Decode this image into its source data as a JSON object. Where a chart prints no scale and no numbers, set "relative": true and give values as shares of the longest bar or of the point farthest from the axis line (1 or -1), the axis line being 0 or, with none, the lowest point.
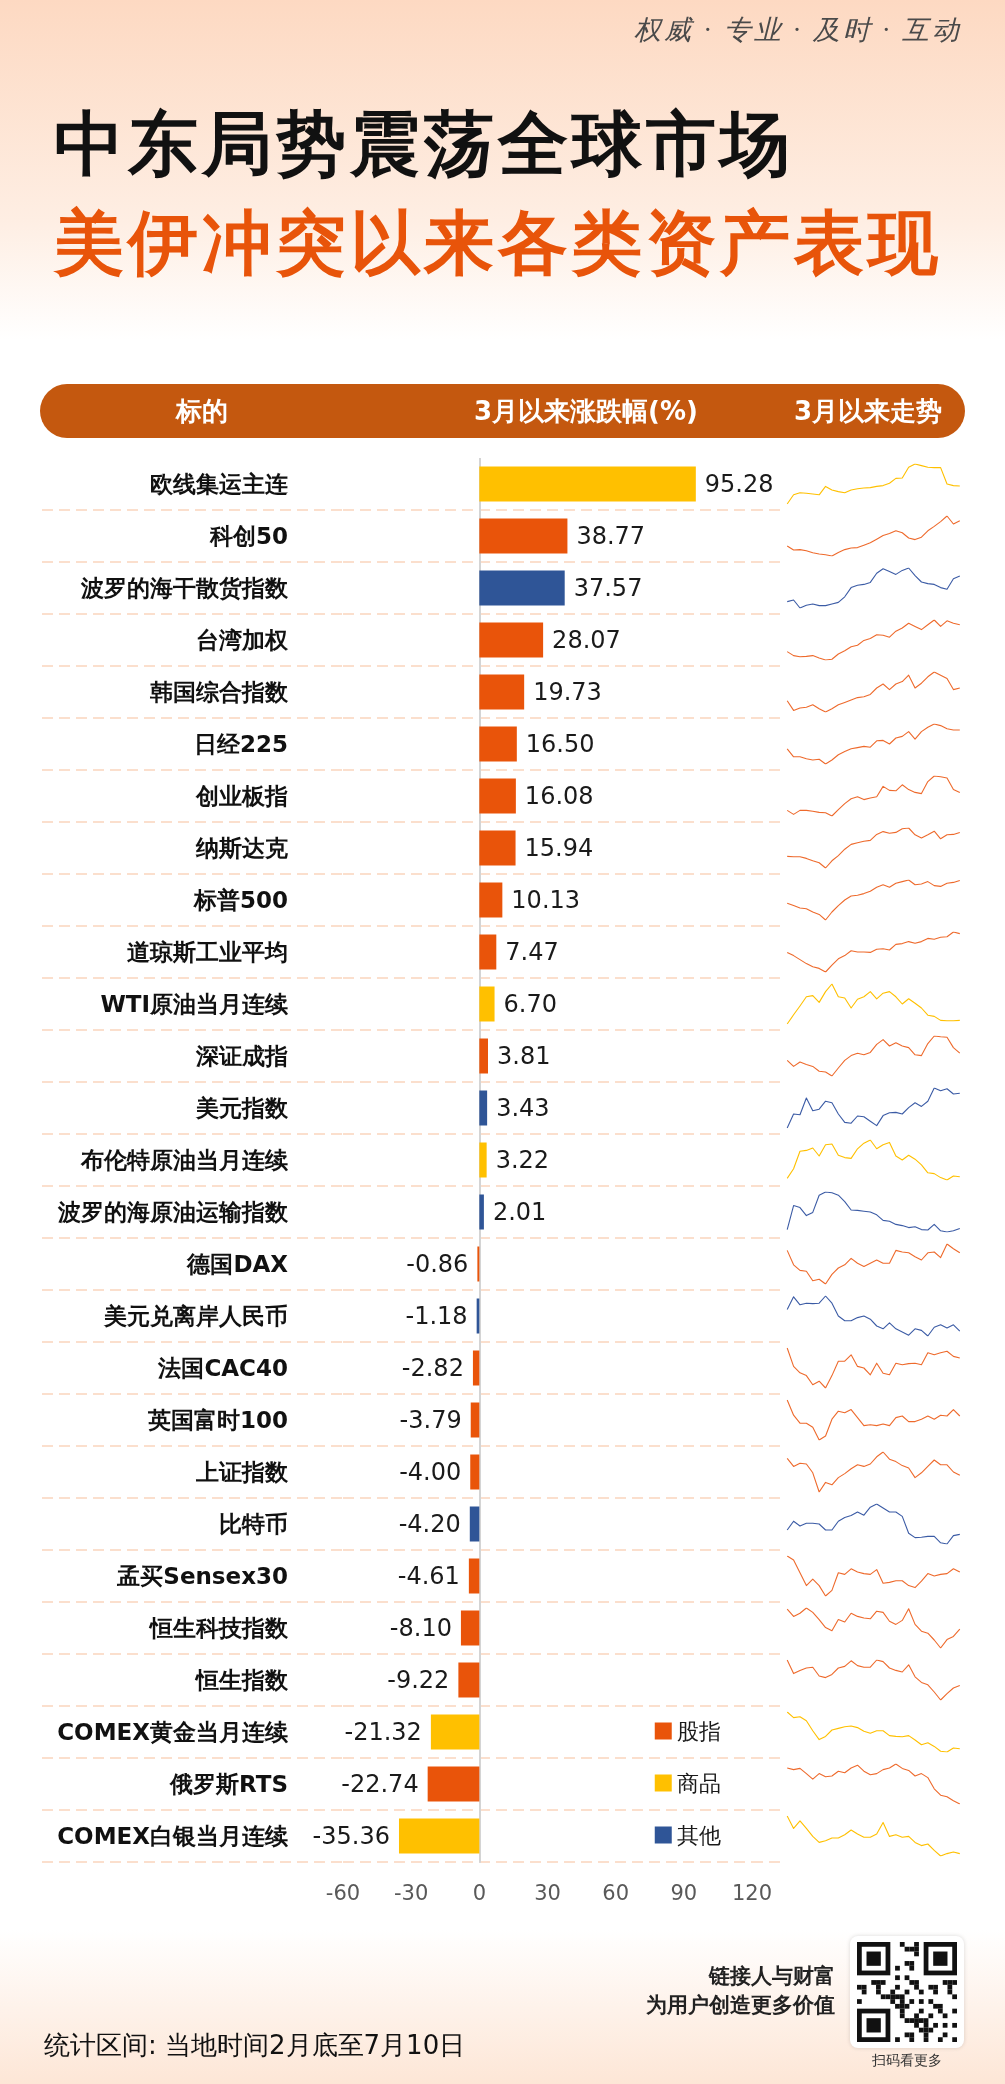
{
  "chart_data": [
    {
      "type": "bar",
      "orientation": "horizontal",
      "stacked": true,
      "title": "中东局势震荡全球市场",
      "subtitle": "美伊冲突以来各类资产表现",
      "ylabel": "标的",
      "xlabel": "3月以来涨跌幅(%)",
      "categories": [
        "欧线集运主连",
        "科创50",
        "波罗的海干散货指数",
        "台湾加权",
        "韩国综合指数",
        "日经225",
        "创业板指",
        "纳斯达克",
        "标普500",
        "道琼斯工业平均",
        "WTI原油当月连续",
        "深证成指",
        "美元指数",
        "布伦特原油当月连续",
        "波罗的海原油运输指数",
        "德国DAX",
        "美元兑离岸人民币",
        "法国CAC40",
        "英国富时100",
        "上证指数",
        "比特币",
        "孟买Sensex30",
        "恒生科技指数",
        "恒生指数",
        "COMEX黄金当月连续",
        "俄罗斯RTS",
        "COMEX白银当月连续"
      ],
      "series": [
        {
          "name": "股指",
          "color": "#e9540a",
          "values": [
            null,
            38.77,
            null,
            28.07,
            19.73,
            16.5,
            16.08,
            15.94,
            10.13,
            7.47,
            null,
            3.81,
            null,
            null,
            null,
            -0.86,
            null,
            -2.82,
            -3.79,
            -4.0,
            null,
            -4.61,
            -8.1,
            -9.22,
            null,
            -22.74,
            null
          ],
          "value_labels": [
            null,
            "38.77",
            null,
            "28.07",
            "19.73",
            "16.50",
            "16.08",
            "15.94",
            "10.13",
            "7.47",
            null,
            "3.81",
            null,
            null,
            null,
            "-0.86",
            null,
            "-2.82",
            "-3.79",
            "-4.00",
            null,
            "-4.61",
            "-8.10",
            "-9.22",
            null,
            "-22.74",
            null
          ]
        },
        {
          "name": "商品",
          "color": "#ffc000",
          "values": [
            95.28,
            null,
            null,
            null,
            null,
            null,
            null,
            null,
            null,
            null,
            6.7,
            null,
            null,
            3.22,
            null,
            null,
            null,
            null,
            null,
            null,
            null,
            null,
            null,
            null,
            -21.32,
            null,
            -35.36
          ],
          "value_labels": [
            "95.28",
            null,
            null,
            null,
            null,
            null,
            null,
            null,
            null,
            null,
            "6.70",
            null,
            null,
            "3.22",
            null,
            null,
            null,
            null,
            null,
            null,
            null,
            null,
            null,
            null,
            "-21.32",
            null,
            "-35.36"
          ]
        },
        {
          "name": "其他",
          "color": "#2f5597",
          "values": [
            null,
            null,
            37.57,
            null,
            null,
            null,
            null,
            null,
            null,
            null,
            null,
            null,
            3.43,
            null,
            2.01,
            null,
            -1.18,
            null,
            null,
            null,
            -4.2,
            null,
            null,
            null,
            null,
            null,
            null
          ],
          "value_labels": [
            null,
            null,
            "37.57",
            null,
            null,
            null,
            null,
            null,
            null,
            null,
            null,
            null,
            "3.43",
            null,
            "2.01",
            null,
            "-1.18",
            null,
            null,
            null,
            "-4.20",
            null,
            null,
            null,
            null,
            null,
            null
          ]
        }
      ],
      "xlim": [
        -60,
        120
      ],
      "xticks": [
        -60,
        -30,
        0,
        30,
        60,
        90,
        120
      ],
      "grid": "y",
      "legend": "bottom right",
      "annotations": [
        "权威 · 专业 · 及时 · 互动",
        "统计区间: 当地时间2月底至7月10日",
        "链接人与财富",
        "为用户创造更多价值",
        "扫码看更多"
      ]
    },
    {
      "type": "line",
      "relative": true,
      "tick_labels": false,
      "title": "3月以来走势",
      "categories": [
        null,
        null,
        null,
        null,
        null,
        null,
        null,
        null,
        null,
        null,
        null,
        null,
        null,
        null,
        null,
        null,
        null,
        null,
        null,
        null,
        null,
        null,
        null,
        null,
        null,
        null,
        null,
        null
      ],
      "series": [
        {
          "color": "#ffc000",
          "values": [
            0,
            0.23,
            0.28,
            0.27,
            0.25,
            0.23,
            0.44,
            0.35,
            0.31,
            0.28,
            0.35,
            0.38,
            0.4,
            0.41,
            0.44,
            0.46,
            0.52,
            0.64,
            0.65,
            0.92,
            1,
            0.96,
            0.92,
            0.91,
            0.91,
            0.5,
            0.46,
            0.45
          ]
        }
      ]
    },
    {
      "type": "line",
      "relative": true,
      "tick_labels": false,
      "categories": [
        null,
        null,
        null,
        null,
        null,
        null,
        null,
        null,
        null,
        null,
        null,
        null,
        null,
        null,
        null,
        null,
        null,
        null,
        null,
        null,
        null,
        null,
        null,
        null,
        null,
        null,
        null,
        null
      ],
      "series": [
        {
          "color": "#ee6a2c",
          "values": [
            0.25,
            0.15,
            0.16,
            0.13,
            0.08,
            0.05,
            0.03,
            0,
            0.09,
            0.16,
            0.2,
            0.21,
            0.27,
            0.33,
            0.42,
            0.51,
            0.56,
            0.63,
            0.58,
            0.45,
            0.41,
            0.47,
            0.63,
            0.74,
            0.86,
            1,
            0.8,
            0.88
          ]
        }
      ]
    },
    {
      "type": "line",
      "relative": true,
      "tick_labels": false,
      "categories": [
        null,
        null,
        null,
        null,
        null,
        null,
        null,
        null,
        null,
        null,
        null,
        null,
        null,
        null,
        null,
        null,
        null,
        null,
        null,
        null,
        null,
        null,
        null,
        null,
        null,
        null,
        null,
        null
      ],
      "series": [
        {
          "color": "#3b5ba5",
          "values": [
            0.16,
            0.2,
            0,
            0.07,
            0.1,
            0.06,
            0.06,
            0.1,
            0.14,
            0.28,
            0.51,
            0.57,
            0.59,
            0.64,
            0.87,
            0.98,
            0.91,
            0.84,
            0.94,
            1,
            0.81,
            0.65,
            0.61,
            0.59,
            0.51,
            0.47,
            0.73,
            0.8
          ]
        }
      ]
    },
    {
      "type": "line",
      "relative": true,
      "tick_labels": false,
      "categories": [
        null,
        null,
        null,
        null,
        null,
        null,
        null,
        null,
        null,
        null,
        null,
        null,
        null,
        null,
        null,
        null,
        null,
        null,
        null,
        null,
        null,
        null,
        null,
        null,
        null,
        null,
        null,
        null
      ],
      "series": [
        {
          "color": "#ee6a2c",
          "values": [
            0.21,
            0.11,
            0.08,
            0.09,
            0.11,
            0.05,
            0,
            0.02,
            0.15,
            0.23,
            0.33,
            0.37,
            0.49,
            0.54,
            0.63,
            0.62,
            0.57,
            0.72,
            0.8,
            0.92,
            0.84,
            0.76,
            0.88,
            1,
            0.84,
            0.98,
            0.92,
            0.88
          ]
        }
      ]
    },
    {
      "type": "line",
      "relative": true,
      "tick_labels": false,
      "categories": [
        null,
        null,
        null,
        null,
        null,
        null,
        null,
        null,
        null,
        null,
        null,
        null,
        null,
        null,
        null,
        null,
        null,
        null,
        null,
        null,
        null,
        null,
        null,
        null,
        null,
        null,
        null,
        null
      ],
      "series": [
        {
          "color": "#ee6a2c",
          "values": [
            0.28,
            0.04,
            0.1,
            0.12,
            0.18,
            0.08,
            0,
            0.08,
            0.18,
            0.24,
            0.3,
            0.36,
            0.38,
            0.44,
            0.6,
            0.7,
            0.56,
            0.7,
            0.76,
            0.92,
            0.6,
            0.72,
            0.88,
            1,
            0.92,
            0.84,
            0.56,
            0.6
          ]
        }
      ]
    },
    {
      "type": "line",
      "relative": true,
      "tick_labels": false,
      "categories": [
        null,
        null,
        null,
        null,
        null,
        null,
        null,
        null,
        null,
        null,
        null,
        null,
        null,
        null,
        null,
        null,
        null,
        null,
        null,
        null,
        null,
        null,
        null,
        null,
        null,
        null,
        null,
        null
      ],
      "series": [
        {
          "color": "#ee6a2c",
          "values": [
            0.38,
            0.18,
            0.18,
            0.13,
            0.1,
            0.12,
            0,
            0.1,
            0.23,
            0.31,
            0.38,
            0.41,
            0.44,
            0.42,
            0.58,
            0.59,
            0.5,
            0.65,
            0.69,
            0.81,
            0.62,
            0.81,
            0.92,
            1,
            0.96,
            0.88,
            0.85,
            0.85
          ]
        }
      ]
    },
    {
      "type": "line",
      "relative": true,
      "tick_labels": false,
      "categories": [
        null,
        null,
        null,
        null,
        null,
        null,
        null,
        null,
        null,
        null,
        null,
        null,
        null,
        null,
        null,
        null,
        null,
        null,
        null,
        null,
        null,
        null,
        null,
        null,
        null,
        null,
        null,
        null
      ],
      "series": [
        {
          "color": "#ee6a2c",
          "values": [
            0.14,
            0.04,
            0.14,
            0.14,
            0.12,
            0.09,
            0.08,
            0,
            0.16,
            0.31,
            0.43,
            0.48,
            0.41,
            0.45,
            0.48,
            0.74,
            0.64,
            0.63,
            0.78,
            0.66,
            0.59,
            0.56,
            0.86,
            1,
            0.98,
            0.95,
            0.66,
            0.59
          ]
        }
      ]
    },
    {
      "type": "line",
      "relative": true,
      "tick_labels": false,
      "categories": [
        null,
        null,
        null,
        null,
        null,
        null,
        null,
        null,
        null,
        null,
        null,
        null,
        null,
        null,
        null,
        null,
        null,
        null,
        null,
        null,
        null,
        null,
        null,
        null,
        null,
        null,
        null,
        null
      ],
      "series": [
        {
          "color": "#ee6a2c",
          "values": [
            0.29,
            0.28,
            0.28,
            0.24,
            0.18,
            0.13,
            0,
            0.18,
            0.31,
            0.47,
            0.59,
            0.63,
            0.67,
            0.69,
            0.84,
            0.91,
            0.87,
            0.89,
            0.98,
            1,
            0.83,
            0.75,
            0.83,
            0.92,
            0.73,
            0.83,
            0.84,
            0.89
          ]
        }
      ]
    },
    {
      "type": "line",
      "relative": true,
      "tick_labels": false,
      "categories": [
        null,
        null,
        null,
        null,
        null,
        null,
        null,
        null,
        null,
        null,
        null,
        null,
        null,
        null,
        null,
        null,
        null,
        null,
        null,
        null,
        null,
        null,
        null,
        null,
        null,
        null,
        null,
        null
      ],
      "series": [
        {
          "color": "#ee6a2c",
          "values": [
            0.42,
            0.36,
            0.3,
            0.28,
            0.2,
            0.14,
            0,
            0.2,
            0.36,
            0.5,
            0.6,
            0.62,
            0.66,
            0.72,
            0.82,
            0.88,
            0.82,
            0.92,
            0.96,
            1,
            0.88,
            0.9,
            0.96,
            0.86,
            0.84,
            0.92,
            0.94,
            0.99
          ]
        }
      ]
    },
    {
      "type": "line",
      "relative": true,
      "tick_labels": false,
      "categories": [
        null,
        null,
        null,
        null,
        null,
        null,
        null,
        null,
        null,
        null,
        null,
        null,
        null,
        null,
        null,
        null,
        null,
        null,
        null,
        null,
        null,
        null,
        null,
        null,
        null,
        null,
        null,
        null
      ],
      "series": [
        {
          "color": "#ee6a2c",
          "values": [
            0.49,
            0.41,
            0.31,
            0.21,
            0.13,
            0.09,
            0,
            0.17,
            0.33,
            0.41,
            0.53,
            0.5,
            0.5,
            0.49,
            0.57,
            0.58,
            0.55,
            0.69,
            0.71,
            0.76,
            0.72,
            0.76,
            0.84,
            0.82,
            0.87,
            0.88,
            1,
            0.96
          ]
        }
      ]
    },
    {
      "type": "line",
      "relative": true,
      "tick_labels": false,
      "categories": [
        null,
        null,
        null,
        null,
        null,
        null,
        null,
        null,
        null,
        null,
        null,
        null,
        null,
        null,
        null,
        null,
        null,
        null,
        null,
        null,
        null,
        null,
        null,
        null,
        null,
        null,
        null,
        null
      ],
      "series": [
        {
          "color": "#ffc000",
          "values": [
            0,
            0.23,
            0.45,
            0.68,
            0.71,
            0.54,
            0.81,
            1,
            0.68,
            0.65,
            0.4,
            0.62,
            0.68,
            0.81,
            0.63,
            0.77,
            0.81,
            0.68,
            0.5,
            0.63,
            0.52,
            0.4,
            0.22,
            0.19,
            0.09,
            0.08,
            0.08,
            0.09
          ]
        }
      ]
    },
    {
      "type": "line",
      "relative": true,
      "tick_labels": false,
      "categories": [
        null,
        null,
        null,
        null,
        null,
        null,
        null,
        null,
        null,
        null,
        null,
        null,
        null,
        null,
        null,
        null,
        null,
        null,
        null,
        null,
        null,
        null,
        null,
        null,
        null,
        null,
        null,
        null
      ],
      "series": [
        {
          "color": "#ee6a2c",
          "values": [
            0.39,
            0.24,
            0.35,
            0.29,
            0.24,
            0.12,
            0.1,
            0,
            0.2,
            0.39,
            0.51,
            0.57,
            0.53,
            0.59,
            0.79,
            0.91,
            0.75,
            0.83,
            0.75,
            0.71,
            0.53,
            0.51,
            0.81,
            1,
            0.98,
            0.97,
            0.71,
            0.57
          ]
        }
      ]
    },
    {
      "type": "line",
      "relative": true,
      "tick_labels": false,
      "categories": [
        null,
        null,
        null,
        null,
        null,
        null,
        null,
        null,
        null,
        null,
        null,
        null,
        null,
        null,
        null,
        null,
        null,
        null,
        null,
        null,
        null,
        null,
        null,
        null,
        null,
        null,
        null,
        null
      ],
      "series": [
        {
          "color": "#3b5ba5",
          "values": [
            0,
            0.35,
            0.33,
            0.75,
            0.43,
            0.47,
            0.67,
            0.63,
            0.35,
            0.14,
            0.12,
            0.3,
            0.28,
            0.17,
            0.06,
            0.31,
            0.38,
            0.39,
            0.35,
            0.51,
            0.63,
            0.54,
            0.67,
            1,
            0.93,
            0.98,
            0.85,
            0.87
          ]
        }
      ]
    },
    {
      "type": "line",
      "relative": true,
      "tick_labels": false,
      "categories": [
        null,
        null,
        null,
        null,
        null,
        null,
        null,
        null,
        null,
        null,
        null,
        null,
        null,
        null,
        null,
        null,
        null,
        null,
        null,
        null,
        null,
        null,
        null,
        null,
        null,
        null,
        null,
        null
      ],
      "series": [
        {
          "color": "#ffc000",
          "values": [
            0.04,
            0.28,
            0.72,
            0.74,
            0.8,
            0.6,
            0.88,
            0.9,
            0.62,
            0.56,
            0.54,
            0.78,
            0.92,
            1,
            0.78,
            0.88,
            0.94,
            0.6,
            0.5,
            0.62,
            0.52,
            0.38,
            0.18,
            0.16,
            0.06,
            0,
            0.1,
            0.08
          ]
        }
      ]
    },
    {
      "type": "line",
      "relative": true,
      "tick_labels": false,
      "categories": [
        null,
        null,
        null,
        null,
        null,
        null,
        null,
        null,
        null,
        null,
        null,
        null,
        null,
        null,
        null,
        null,
        null,
        null,
        null,
        null,
        null,
        null,
        null,
        null,
        null,
        null,
        null,
        null
      ],
      "series": [
        {
          "color": "#3b5ba5",
          "values": [
            0.06,
            0.66,
            0.61,
            0.41,
            0.49,
            0.92,
            1,
            0.98,
            0.92,
            0.76,
            0.55,
            0.54,
            0.52,
            0.5,
            0.43,
            0.29,
            0.27,
            0.19,
            0.16,
            0.11,
            0.13,
            0.06,
            0.05,
            0.19,
            0.03,
            0,
            0.03,
            0.09
          ]
        }
      ]
    },
    {
      "type": "line",
      "relative": true,
      "tick_labels": false,
      "categories": [
        null,
        null,
        null,
        null,
        null,
        null,
        null,
        null,
        null,
        null,
        null,
        null,
        null,
        null,
        null,
        null,
        null,
        null,
        null,
        null,
        null,
        null,
        null,
        null,
        null,
        null,
        null,
        null
      ],
      "series": [
        {
          "color": "#ee6a2c",
          "values": [
            0.84,
            0.48,
            0.34,
            0.32,
            0.08,
            0.12,
            0,
            0.24,
            0.4,
            0.48,
            0.64,
            0.52,
            0.44,
            0.52,
            0.6,
            0.52,
            0.52,
            0.84,
            0.8,
            0.78,
            0.68,
            0.6,
            0.78,
            0.8,
            0.66,
            1,
            0.88,
            0.78
          ]
        }
      ]
    },
    {
      "type": "line",
      "relative": true,
      "tick_labels": false,
      "categories": [
        null,
        null,
        null,
        null,
        null,
        null,
        null,
        null,
        null,
        null,
        null,
        null,
        null,
        null,
        null,
        null,
        null,
        null,
        null,
        null,
        null,
        null,
        null,
        null,
        null,
        null,
        null,
        null
      ],
      "series": [
        {
          "color": "#3b5ba5",
          "values": [
            0.66,
            0.98,
            0.78,
            0.82,
            0.81,
            0.82,
            1,
            0.82,
            0.5,
            0.38,
            0.38,
            0.46,
            0.5,
            0.42,
            0.25,
            0.18,
            0.33,
            0.18,
            0.1,
            0.02,
            0.18,
            0.14,
            0,
            0.22,
            0.28,
            0.2,
            0.28,
            0.12
          ]
        }
      ]
    },
    {
      "type": "line",
      "relative": true,
      "tick_labels": false,
      "categories": [
        null,
        null,
        null,
        null,
        null,
        null,
        null,
        null,
        null,
        null,
        null,
        null,
        null,
        null,
        null,
        null,
        null,
        null,
        null,
        null,
        null,
        null,
        null,
        null,
        null,
        null,
        null,
        null
      ],
      "series": [
        {
          "color": "#ee6a2c",
          "values": [
            1,
            0.54,
            0.38,
            0.31,
            0.08,
            0.17,
            0,
            0.31,
            0.67,
            0.67,
            0.83,
            0.54,
            0.5,
            0.33,
            0.62,
            0.37,
            0.33,
            0.62,
            0.58,
            0.61,
            0.62,
            0.58,
            0.88,
            0.83,
            0.88,
            0.92,
            0.79,
            0.75
          ]
        }
      ]
    },
    {
      "type": "line",
      "relative": true,
      "tick_labels": false,
      "categories": [
        null,
        null,
        null,
        null,
        null,
        null,
        null,
        null,
        null,
        null,
        null,
        null,
        null,
        null,
        null,
        null,
        null,
        null,
        null,
        null,
        null,
        null,
        null,
        null,
        null,
        null,
        null,
        null
      ],
      "series": [
        {
          "color": "#ee6a2c",
          "values": [
            1,
            0.62,
            0.42,
            0.42,
            0.32,
            0,
            0.1,
            0.52,
            0.72,
            0.68,
            0.76,
            0.56,
            0.36,
            0.38,
            0.36,
            0.4,
            0.36,
            0.56,
            0.6,
            0.46,
            0.46,
            0.52,
            0.6,
            0.52,
            0.62,
            0.6,
            0.76,
            0.6
          ]
        }
      ]
    },
    {
      "type": "line",
      "relative": true,
      "tick_labels": false,
      "categories": [
        null,
        null,
        null,
        null,
        null,
        null,
        null,
        null,
        null,
        null,
        null,
        null,
        null,
        null,
        null,
        null,
        null,
        null,
        null,
        null,
        null,
        null,
        null,
        null,
        null,
        null,
        null,
        null
      ],
      "series": [
        {
          "color": "#ee6a2c",
          "values": [
            0.84,
            0.64,
            0.72,
            0.7,
            0.48,
            0,
            0.24,
            0.18,
            0.36,
            0.46,
            0.58,
            0.68,
            0.64,
            0.7,
            0.88,
            1,
            0.82,
            0.76,
            0.66,
            0.6,
            0.36,
            0.48,
            0.64,
            0.8,
            0.68,
            0.68,
            0.5,
            0.42
          ]
        }
      ]
    },
    {
      "type": "line",
      "relative": true,
      "tick_labels": false,
      "categories": [
        null,
        null,
        null,
        null,
        null,
        null,
        null,
        null,
        null,
        null,
        null,
        null,
        null,
        null,
        null,
        null,
        null,
        null,
        null,
        null,
        null,
        null,
        null,
        null,
        null,
        null,
        null,
        null
      ],
      "series": [
        {
          "color": "#3b5ba5",
          "values": [
            0.35,
            0.57,
            0.45,
            0.52,
            0.52,
            0.5,
            0.35,
            0.35,
            0.57,
            0.66,
            0.71,
            0.8,
            0.72,
            0.92,
            1,
            0.9,
            0.8,
            0.8,
            0.69,
            0.27,
            0.16,
            0.17,
            0.19,
            0.19,
            0.03,
            0,
            0.21,
            0.24
          ]
        }
      ]
    },
    {
      "type": "line",
      "relative": true,
      "tick_labels": false,
      "categories": [
        null,
        null,
        null,
        null,
        null,
        null,
        null,
        null,
        null,
        null,
        null,
        null,
        null,
        null,
        null,
        null,
        null,
        null,
        null,
        null,
        null,
        null,
        null,
        null,
        null,
        null,
        null,
        null
      ],
      "series": [
        {
          "color": "#ee6a2c",
          "values": [
            1,
            0.9,
            0.58,
            0.26,
            0.42,
            0.26,
            0,
            0.14,
            0.58,
            0.54,
            0.68,
            0.6,
            0.56,
            0.54,
            0.66,
            0.32,
            0.34,
            0.38,
            0.38,
            0.26,
            0.21,
            0.37,
            0.56,
            0.5,
            0.54,
            0.56,
            0.68,
            0.6
          ]
        }
      ]
    },
    {
      "type": "line",
      "relative": true,
      "tick_labels": false,
      "categories": [
        null,
        null,
        null,
        null,
        null,
        null,
        null,
        null,
        null,
        null,
        null,
        null,
        null,
        null,
        null,
        null,
        null,
        null,
        null,
        null,
        null,
        null,
        null,
        null,
        null,
        null,
        null,
        null
      ],
      "series": [
        {
          "color": "#ee6a2c",
          "values": [
            0.97,
            0.79,
            0.87,
            1,
            0.89,
            0.71,
            0.51,
            0.43,
            0.71,
            0.65,
            0.87,
            0.79,
            0.75,
            0.73,
            0.92,
            0.89,
            0.67,
            0.59,
            0.69,
            0.98,
            0.59,
            0.42,
            0.37,
            0.2,
            0,
            0.21,
            0.29,
            0.47
          ]
        }
      ]
    },
    {
      "type": "line",
      "relative": true,
      "tick_labels": false,
      "categories": [
        null,
        null,
        null,
        null,
        null,
        null,
        null,
        null,
        null,
        null,
        null,
        null,
        null,
        null,
        null,
        null,
        null,
        null,
        null,
        null,
        null,
        null,
        null,
        null,
        null,
        null,
        null,
        null
      ],
      "series": [
        {
          "color": "#ee6a2c",
          "values": [
            1,
            0.66,
            0.74,
            0.8,
            0.82,
            0.6,
            0.56,
            0.64,
            0.8,
            0.84,
            0.98,
            0.86,
            0.82,
            0.82,
            1,
            0.96,
            0.8,
            0.74,
            0.7,
            0.88,
            0.58,
            0.44,
            0.38,
            0.2,
            0,
            0.16,
            0.3,
            0.36
          ]
        }
      ]
    },
    {
      "type": "line",
      "relative": true,
      "tick_labels": false,
      "categories": [
        null,
        null,
        null,
        null,
        null,
        null,
        null,
        null,
        null,
        null,
        null,
        null,
        null,
        null,
        null,
        null,
        null,
        null,
        null,
        null,
        null,
        null,
        null,
        null,
        null,
        null,
        null,
        null
      ],
      "series": [
        {
          "color": "#ffc000",
          "values": [
            1,
            0.86,
            0.88,
            0.78,
            0.53,
            0.31,
            0.39,
            0.55,
            0.59,
            0.63,
            0.65,
            0.61,
            0.52,
            0.47,
            0.53,
            0.53,
            0.41,
            0.39,
            0.38,
            0.41,
            0.3,
            0.18,
            0.23,
            0.14,
            0.02,
            0,
            0.1,
            0.08
          ]
        }
      ]
    },
    {
      "type": "line",
      "relative": true,
      "tick_labels": false,
      "categories": [
        null,
        null,
        null,
        null,
        null,
        null,
        null,
        null,
        null,
        null,
        null,
        null,
        null,
        null,
        null,
        null,
        null,
        null,
        null,
        null,
        null,
        null,
        null,
        null,
        null,
        null,
        null,
        null
      ],
      "series": [
        {
          "color": "#ee6a2c",
          "values": [
            0.9,
            0.86,
            0.89,
            0.76,
            0.62,
            0.76,
            0.68,
            0.7,
            0.82,
            0.78,
            0.9,
            0.97,
            0.82,
            0.73,
            0.76,
            0.86,
            0.9,
            1,
            0.89,
            0.84,
            0.7,
            0.76,
            0.66,
            0.38,
            0.22,
            0.18,
            0.08,
            0
          ]
        }
      ]
    },
    {
      "type": "line",
      "relative": true,
      "tick_labels": false,
      "categories": [
        null,
        null,
        null,
        null,
        null,
        null,
        null,
        null,
        null,
        null,
        null,
        null,
        null,
        null,
        null,
        null,
        null,
        null,
        null,
        null,
        null,
        null,
        null,
        null,
        null,
        null,
        null,
        null
      ],
      "series": [
        {
          "color": "#ffc000",
          "values": [
            1,
            0.69,
            0.88,
            0.69,
            0.49,
            0.34,
            0.38,
            0.45,
            0.45,
            0.53,
            0.65,
            0.55,
            0.47,
            0.47,
            0.55,
            0.84,
            0.49,
            0.53,
            0.47,
            0.49,
            0.34,
            0.26,
            0.3,
            0.14,
            0,
            0.06,
            0.1,
            0.06
          ]
        }
      ]
    }
  ]
}
